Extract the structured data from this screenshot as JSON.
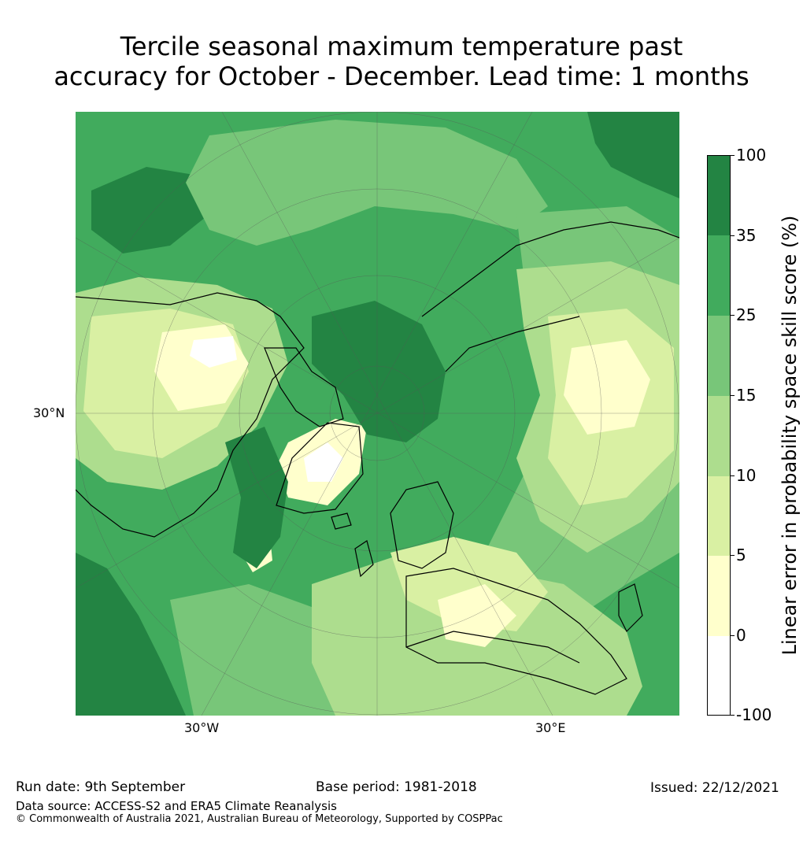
{
  "title": {
    "line1": "Tercile seasonal maximum temperature past",
    "line2": "accuracy for October - December. Lead time: 1 months"
  },
  "map": {
    "lat_labels": [
      "30°N"
    ],
    "lon_labels": [
      "30°W",
      "30°E"
    ],
    "colors": {
      "ocean_dark": "#238443",
      "mid_green": "#41ab5d",
      "light_green": "#78c679",
      "pale_green": "#addd8e",
      "yellow_green": "#d9f0a3",
      "cream": "#ffffcc",
      "white": "#ffffff"
    }
  },
  "colorbar": {
    "label": "Linear error in probability space skill score (%)",
    "ticks": [
      "100",
      "35",
      "25",
      "15",
      "10",
      "5",
      "0",
      "-100"
    ],
    "segment_colors": [
      "#238443",
      "#41ab5d",
      "#78c679",
      "#addd8e",
      "#d9f0a3",
      "#ffffcc",
      "#ffffff"
    ]
  },
  "footer": {
    "run_date": "Run date: 9th September",
    "base_period": "Base period: 1981-2018",
    "issued": "Issued: 22/12/2021",
    "data_source": "Data source: ACCESS-S2 and ERA5 Climate Reanalysis",
    "copyright": "© Commonwealth of Australia 2021, Australian Bureau of Meteorology, Supported by COSPPac"
  }
}
